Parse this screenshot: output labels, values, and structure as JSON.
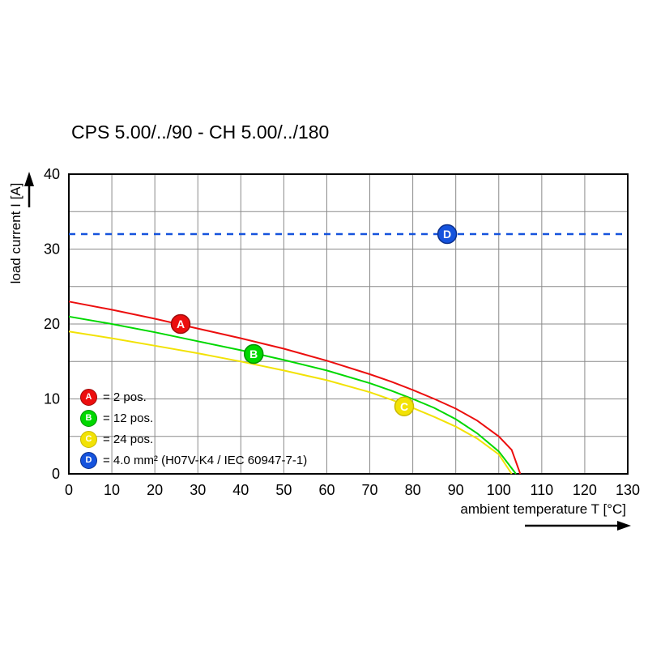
{
  "page": {
    "background": "#ffffff"
  },
  "chart_data": {
    "type": "line",
    "title": "CPS 5.00/../90 - CH 5.00/../180",
    "xlabel": "ambient temperature T [°C]",
    "ylabel": "load current I [A]",
    "xlim": [
      0,
      130
    ],
    "ylim": [
      0,
      40
    ],
    "x_ticks": [
      0,
      10,
      20,
      30,
      40,
      50,
      60,
      70,
      80,
      90,
      100,
      110,
      120,
      130
    ],
    "y_ticks": [
      0,
      10,
      20,
      30,
      40
    ],
    "x_grid_step": 10,
    "y_grid_step": 5,
    "grid": true,
    "legend_position": "inside-bottom-left",
    "series": [
      {
        "name": "A",
        "label": "2 pos.",
        "color": "#ec0e0e",
        "edge": "#9e0b0b",
        "style": "solid",
        "points": [
          [
            0,
            23
          ],
          [
            10,
            21.9
          ],
          [
            20,
            20.7
          ],
          [
            30,
            19.4
          ],
          [
            40,
            18.1
          ],
          [
            50,
            16.7
          ],
          [
            60,
            15.1
          ],
          [
            70,
            13.3
          ],
          [
            75,
            12.3
          ],
          [
            80,
            11.2
          ],
          [
            85,
            10.0
          ],
          [
            90,
            8.7
          ],
          [
            95,
            7.1
          ],
          [
            100,
            5.0
          ],
          [
            103,
            3.2
          ],
          [
            105,
            0
          ]
        ]
      },
      {
        "name": "B",
        "label": "12 pos.",
        "color": "#00d800",
        "edge": "#009000",
        "style": "solid",
        "points": [
          [
            0,
            21
          ],
          [
            10,
            20.0
          ],
          [
            20,
            18.9
          ],
          [
            30,
            17.7
          ],
          [
            40,
            16.5
          ],
          [
            50,
            15.2
          ],
          [
            60,
            13.8
          ],
          [
            70,
            12.1
          ],
          [
            75,
            11.1
          ],
          [
            80,
            10.0
          ],
          [
            85,
            8.8
          ],
          [
            90,
            7.3
          ],
          [
            95,
            5.4
          ],
          [
            100,
            3.0
          ],
          [
            104,
            0
          ]
        ]
      },
      {
        "name": "C",
        "label": "24 pos.",
        "color": "#f2e205",
        "edge": "#c9b900",
        "style": "solid",
        "points": [
          [
            0,
            19
          ],
          [
            10,
            18.1
          ],
          [
            20,
            17.1
          ],
          [
            30,
            16.1
          ],
          [
            40,
            15.0
          ],
          [
            50,
            13.8
          ],
          [
            60,
            12.5
          ],
          [
            70,
            10.9
          ],
          [
            75,
            9.9
          ],
          [
            80,
            8.8
          ],
          [
            85,
            7.6
          ],
          [
            90,
            6.3
          ],
          [
            95,
            4.7
          ],
          [
            100,
            2.6
          ],
          [
            103,
            0
          ]
        ]
      },
      {
        "name": "D",
        "label": "4.0 mm² (H07V-K4 / IEC 60947-7-1)",
        "color": "#1553dd",
        "edge": "#0b2f8c",
        "style": "dashed",
        "points": [
          [
            0,
            32
          ],
          [
            130,
            32
          ]
        ]
      }
    ],
    "markers": [
      {
        "letter": "A",
        "x": 26,
        "y": 20,
        "color": "#ec0e0e",
        "edge": "#9e0b0b"
      },
      {
        "letter": "B",
        "x": 43,
        "y": 16,
        "color": "#00d800",
        "edge": "#009000"
      },
      {
        "letter": "C",
        "x": 78,
        "y": 9,
        "color": "#f2e205",
        "edge": "#c9b900"
      },
      {
        "letter": "D",
        "x": 88,
        "y": 32,
        "color": "#1553dd",
        "edge": "#0b2f8c"
      }
    ]
  },
  "legend": {
    "items": [
      {
        "letter": "A",
        "label": "= 2 pos.",
        "color": "#ec0e0e",
        "edge": "#9e0b0b"
      },
      {
        "letter": "B",
        "label": "= 12 pos.",
        "color": "#00d800",
        "edge": "#009000"
      },
      {
        "letter": "C",
        "label": "= 24 pos.",
        "color": "#f2e205",
        "edge": "#c9b900"
      },
      {
        "letter": "D",
        "label": "= 4.0 mm² (H07V-K4 / IEC 60947-7-1)",
        "color": "#1553dd",
        "edge": "#0b2f8c"
      }
    ]
  }
}
